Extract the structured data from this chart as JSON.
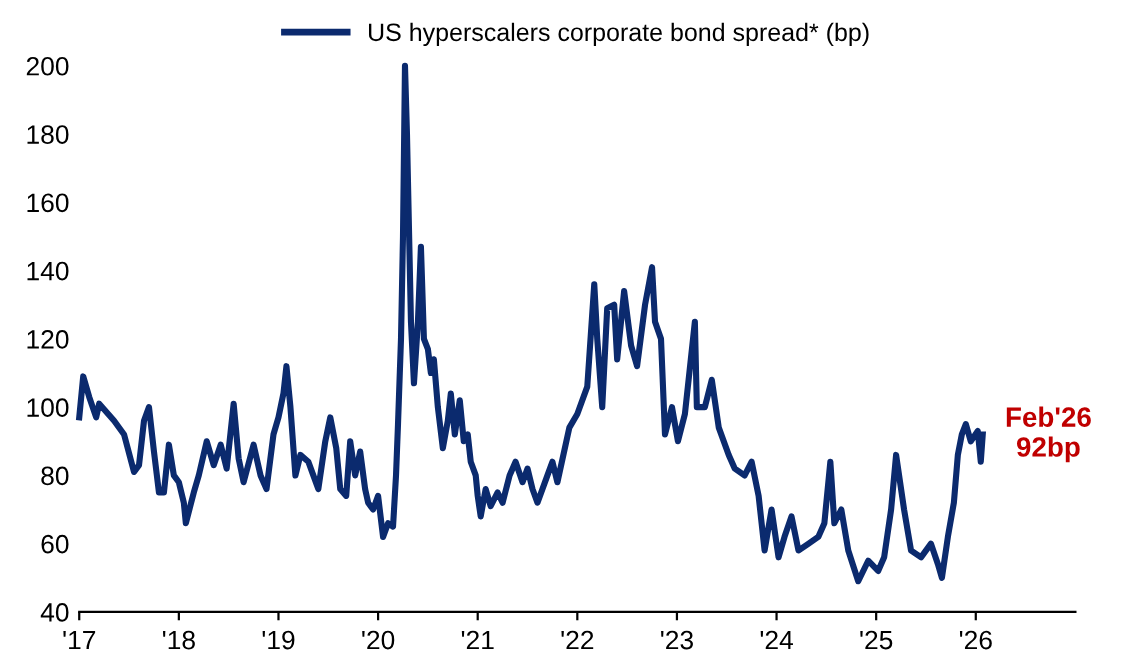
{
  "chart_data": {
    "type": "line",
    "x": [
      2017.0,
      2017.04,
      2017.1,
      2017.17,
      2017.2,
      2017.35,
      2017.45,
      2017.55,
      2017.6,
      2017.65,
      2017.7,
      2017.75,
      2017.8,
      2017.85,
      2017.9,
      2017.95,
      2018.0,
      2018.05,
      2018.07,
      2018.15,
      2018.2,
      2018.28,
      2018.35,
      2018.42,
      2018.48,
      2018.55,
      2018.6,
      2018.65,
      2018.75,
      2018.82,
      2018.88,
      2018.95,
      2019.0,
      2019.05,
      2019.08,
      2019.12,
      2019.17,
      2019.22,
      2019.3,
      2019.35,
      2019.4,
      2019.47,
      2019.52,
      2019.58,
      2019.62,
      2019.68,
      2019.72,
      2019.77,
      2019.82,
      2019.87,
      2019.9,
      2019.95,
      2020.0,
      2020.05,
      2020.1,
      2020.15,
      2020.18,
      2020.2,
      2020.23,
      2020.25,
      2020.27,
      2020.29,
      2020.3,
      2020.33,
      2020.36,
      2020.4,
      2020.43,
      2020.46,
      2020.5,
      2020.53,
      2020.56,
      2020.6,
      2020.65,
      2020.7,
      2020.73,
      2020.77,
      2020.82,
      2020.86,
      2020.9,
      2020.93,
      2020.98,
      2021.0,
      2021.03,
      2021.08,
      2021.13,
      2021.2,
      2021.25,
      2021.32,
      2021.38,
      2021.45,
      2021.5,
      2021.55,
      2021.6,
      2021.7,
      2021.75,
      2021.8,
      2021.92,
      2022.0,
      2022.1,
      2022.17,
      2022.2,
      2022.25,
      2022.3,
      2022.37,
      2022.4,
      2022.47,
      2022.54,
      2022.6,
      2022.68,
      2022.75,
      2022.78,
      2022.84,
      2022.88,
      2022.95,
      2023.01,
      2023.08,
      2023.18,
      2023.2,
      2023.28,
      2023.35,
      2023.42,
      2023.52,
      2023.58,
      2023.68,
      2023.75,
      2023.82,
      2023.88,
      2023.95,
      2024.02,
      2024.08,
      2024.15,
      2024.22,
      2024.32,
      2024.42,
      2024.48,
      2024.54,
      2024.58,
      2024.65,
      2024.72,
      2024.82,
      2024.92,
      2025.02,
      2025.08,
      2025.15,
      2025.2,
      2025.28,
      2025.35,
      2025.45,
      2025.55,
      2025.62,
      2025.66,
      2025.72,
      2025.78,
      2025.82,
      2025.86,
      2025.9,
      2025.95,
      2026.02,
      2026.05,
      2026.07
    ],
    "series": [
      {
        "name": "US hyperscalers corporate bond spread* (bp)",
        "color": "#0b2a6e",
        "values": [
          97,
          109,
          103,
          97,
          101,
          96,
          92,
          81,
          83,
          96,
          100,
          87,
          75,
          75,
          89,
          80,
          78,
          72,
          66,
          75,
          80,
          90,
          83,
          89,
          82,
          101,
          85,
          78,
          89,
          80,
          76,
          92,
          97,
          104,
          112,
          100,
          80,
          86,
          84,
          80,
          76,
          90,
          97,
          88,
          76,
          74,
          90,
          80,
          87,
          76,
          72,
          70,
          74,
          62,
          66,
          65,
          80,
          95,
          120,
          150,
          200,
          180,
          166,
          125,
          107,
          125,
          147,
          120,
          117,
          110,
          114,
          100,
          88,
          96,
          104,
          92,
          102,
          90,
          92,
          84,
          80,
          74,
          68,
          76,
          71,
          75,
          72,
          80,
          84,
          78,
          82,
          76,
          72,
          80,
          84,
          78,
          94,
          98,
          106,
          136,
          120,
          100,
          129,
          130,
          114,
          134,
          118,
          112,
          130,
          141,
          125,
          120,
          92,
          100,
          90,
          98,
          125,
          100,
          100,
          108,
          94,
          86,
          82,
          80,
          84,
          74,
          58,
          70,
          56,
          62,
          68,
          58,
          60,
          62,
          66,
          84,
          66,
          70,
          58,
          49,
          55,
          52,
          56,
          70,
          86,
          70,
          58,
          56,
          60,
          54,
          50,
          62,
          72,
          86,
          92,
          95,
          90,
          93,
          84,
          92
        ]
      }
    ],
    "xlim": [
      2017,
      2027
    ],
    "ylim": [
      40,
      200
    ],
    "xticks": [
      {
        "value": 2017,
        "label": "'17"
      },
      {
        "value": 2018,
        "label": "'18"
      },
      {
        "value": 2019,
        "label": "'19"
      },
      {
        "value": 2020,
        "label": "'20"
      },
      {
        "value": 2021,
        "label": "'21"
      },
      {
        "value": 2022,
        "label": "'22"
      },
      {
        "value": 2023,
        "label": "'23"
      },
      {
        "value": 2024,
        "label": "'24"
      },
      {
        "value": 2025,
        "label": "'25"
      },
      {
        "value": 2026,
        "label": "'26"
      }
    ],
    "yticks": [
      40,
      60,
      80,
      100,
      120,
      140,
      160,
      180,
      200
    ],
    "annotations": [
      {
        "text": "Feb'26\n92bp",
        "x": 2026.07,
        "y": 92
      }
    ],
    "legend": "top",
    "grid": false,
    "line_style": "solid",
    "marker": "none"
  }
}
